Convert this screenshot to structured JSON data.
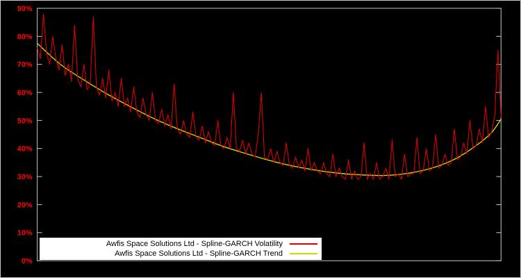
{
  "chart_data": {
    "type": "line",
    "title": "",
    "xlabel": "",
    "ylabel": "",
    "x_range": [
      0,
      1
    ],
    "ylim": [
      0,
      0.9
    ],
    "grid": false,
    "legend_position": "bottom-left-inside",
    "background_color": "#000000",
    "frame_color": "#c8c8c8",
    "tick_label_color": "#ff0000",
    "legend_background": "#ffffff",
    "legend_text_color": "#000000",
    "yticks": [
      {
        "value": 0,
        "label": "0%"
      },
      {
        "value": 10,
        "label": "10%"
      },
      {
        "value": 20,
        "label": "20%"
      },
      {
        "value": 30,
        "label": "30%"
      },
      {
        "value": 40,
        "label": "40%"
      },
      {
        "value": 50,
        "label": "50%"
      },
      {
        "value": 60,
        "label": "60%"
      },
      {
        "value": 70,
        "label": "70%"
      },
      {
        "value": 80,
        "label": "80%"
      },
      {
        "value": 90,
        "label": "90%"
      }
    ],
    "series": [
      {
        "name": "Awfis Space Solutions Ltd - Spline-GARCH Volatility",
        "color": "#dd0000",
        "style": "jagged",
        "values": [
          0.76,
          0.72,
          0.88,
          0.74,
          0.7,
          0.8,
          0.72,
          0.68,
          0.77,
          0.66,
          0.7,
          0.64,
          0.84,
          0.65,
          0.62,
          0.7,
          0.61,
          0.63,
          0.87,
          0.62,
          0.59,
          0.65,
          0.58,
          0.68,
          0.57,
          0.6,
          0.55,
          0.65,
          0.55,
          0.58,
          0.53,
          0.62,
          0.53,
          0.51,
          0.58,
          0.52,
          0.5,
          0.6,
          0.5,
          0.49,
          0.54,
          0.48,
          0.52,
          0.47,
          0.63,
          0.47,
          0.45,
          0.5,
          0.45,
          0.44,
          0.53,
          0.44,
          0.43,
          0.48,
          0.42,
          0.46,
          0.42,
          0.41,
          0.5,
          0.41,
          0.4,
          0.44,
          0.4,
          0.6,
          0.4,
          0.39,
          0.43,
          0.38,
          0.42,
          0.38,
          0.37,
          0.45,
          0.6,
          0.37,
          0.36,
          0.4,
          0.35,
          0.39,
          0.35,
          0.34,
          0.42,
          0.34,
          0.33,
          0.37,
          0.33,
          0.36,
          0.32,
          0.4,
          0.32,
          0.35,
          0.32,
          0.31,
          0.35,
          0.31,
          0.3,
          0.38,
          0.3,
          0.33,
          0.3,
          0.29,
          0.36,
          0.29,
          0.32,
          0.29,
          0.3,
          0.42,
          0.29,
          0.31,
          0.29,
          0.35,
          0.29,
          0.3,
          0.33,
          0.29,
          0.43,
          0.3,
          0.31,
          0.29,
          0.38,
          0.3,
          0.31,
          0.31,
          0.44,
          0.31,
          0.32,
          0.4,
          0.32,
          0.33,
          0.45,
          0.33,
          0.34,
          0.38,
          0.34,
          0.35,
          0.47,
          0.36,
          0.37,
          0.42,
          0.38,
          0.5,
          0.4,
          0.41,
          0.47,
          0.42,
          0.55,
          0.44,
          0.46,
          0.52,
          0.75,
          0.51
        ]
      },
      {
        "name": "Awfis Space Solutions Ltd - Spline-GARCH Trend",
        "color": "#d6d600",
        "style": "smooth",
        "points": [
          [
            0.0,
            0.775
          ],
          [
            0.05,
            0.7
          ],
          [
            0.1,
            0.645
          ],
          [
            0.15,
            0.595
          ],
          [
            0.2,
            0.55
          ],
          [
            0.25,
            0.508
          ],
          [
            0.3,
            0.472
          ],
          [
            0.35,
            0.44
          ],
          [
            0.4,
            0.408
          ],
          [
            0.45,
            0.382
          ],
          [
            0.5,
            0.358
          ],
          [
            0.55,
            0.338
          ],
          [
            0.6,
            0.323
          ],
          [
            0.65,
            0.312
          ],
          [
            0.7,
            0.306
          ],
          [
            0.75,
            0.304
          ],
          [
            0.8,
            0.312
          ],
          [
            0.85,
            0.33
          ],
          [
            0.9,
            0.362
          ],
          [
            0.95,
            0.415
          ],
          [
            0.98,
            0.458
          ],
          [
            1.0,
            0.505
          ]
        ]
      }
    ]
  }
}
